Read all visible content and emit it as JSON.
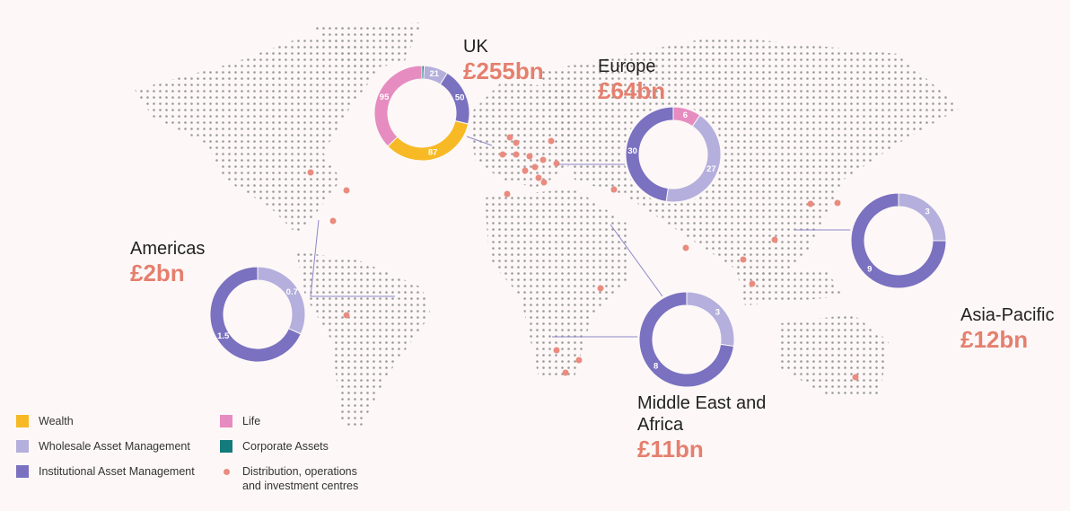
{
  "legend": {
    "items": [
      {
        "name": "Wealth",
        "color": "#f7b924"
      },
      {
        "name": "Wholesale Asset Management",
        "color": "#b4afdc"
      },
      {
        "name": "Institutional Asset Management",
        "color": "#7a71c0"
      },
      {
        "name": "Life",
        "color": "#e68cc0"
      },
      {
        "name": "Corporate Assets",
        "color": "#137b7b"
      }
    ],
    "centres": {
      "label": "Distribution, operations and investment centres",
      "color": "#ea8b7f"
    }
  },
  "chart_data": [
    {
      "type": "pie",
      "donut": true,
      "title": "UK",
      "subtitle": "£255bn",
      "values": [
        2,
        21,
        50,
        87,
        95
      ],
      "colors": [
        "#137b7b",
        "#b4afdc",
        "#7a71c0",
        "#f7b924",
        "#e68cc0"
      ]
    },
    {
      "type": "pie",
      "donut": true,
      "title": "Europe",
      "subtitle": "£64bn",
      "values": [
        6,
        27,
        30
      ],
      "colors": [
        "#e68cc0",
        "#b4afdc",
        "#7a71c0"
      ]
    },
    {
      "type": "pie",
      "donut": true,
      "title": "Americas",
      "subtitle": "£2bn",
      "values": [
        0.7,
        1.5
      ],
      "colors": [
        "#b4afdc",
        "#7a71c0"
      ]
    },
    {
      "type": "pie",
      "donut": true,
      "title": "Asia-Pacific",
      "subtitle": "£12bn",
      "values": [
        3,
        9
      ],
      "colors": [
        "#b4afdc",
        "#7a71c0"
      ]
    },
    {
      "type": "pie",
      "donut": true,
      "title": "Middle East and Africa",
      "subtitle": "£11bn",
      "values": [
        3,
        8
      ],
      "colors": [
        "#b4afdc",
        "#7a71c0"
      ]
    }
  ]
}
